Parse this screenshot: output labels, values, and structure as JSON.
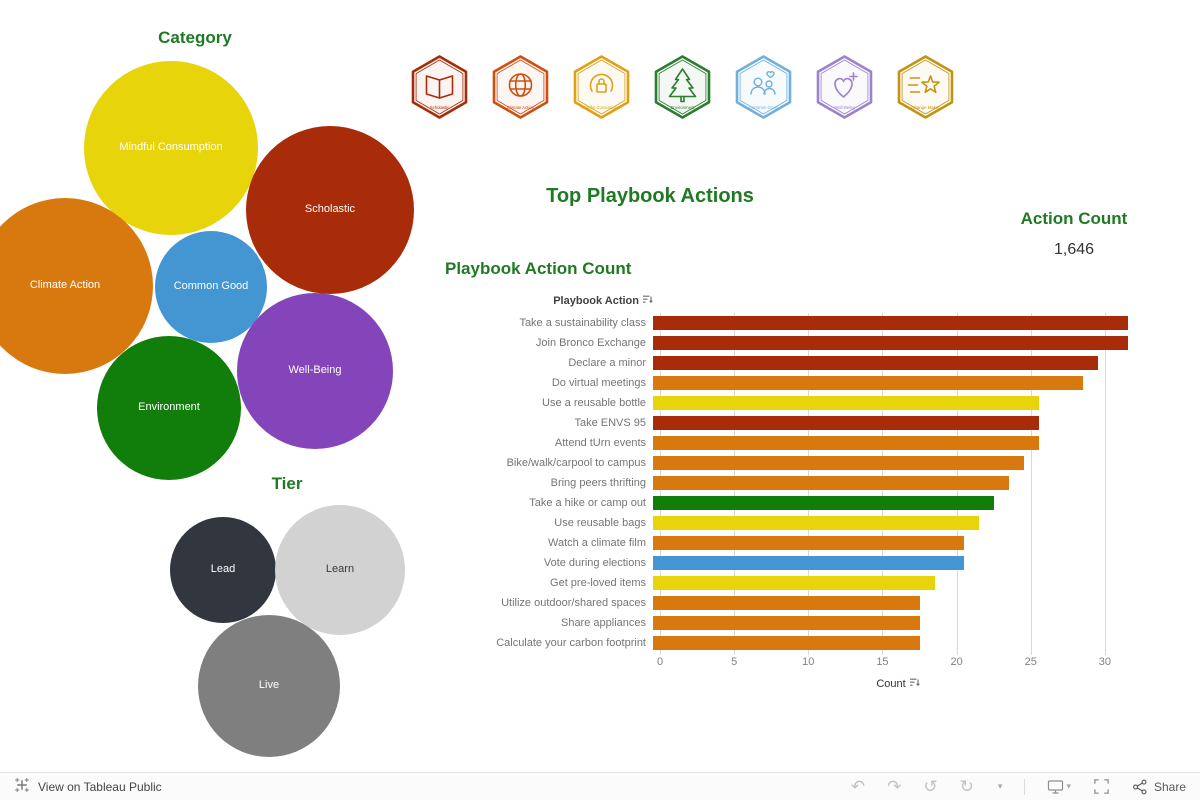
{
  "accent": {
    "heading_green": "#1f7a23"
  },
  "main": {
    "title": "Top Playbook Actions",
    "action_count_label": "Action Count",
    "action_count_value": "1,646",
    "chart_title": "Playbook Action Count",
    "column_header": "Playbook Action",
    "xaxis_label": "Count"
  },
  "chart_data": [
    {
      "type": "bubble",
      "title": "Category",
      "items": [
        {
          "label": "Mindful Consumption",
          "color": "#e8d40b",
          "text_color": "#ffffff"
        },
        {
          "label": "Scholastic",
          "color": "#a82c09",
          "text_color": "#ffffff"
        },
        {
          "label": "Climate Action",
          "color": "#d8790f",
          "text_color": "#ffffff"
        },
        {
          "label": "Common Good",
          "color": "#4496d3",
          "text_color": "#ffffff"
        },
        {
          "label": "Well-Being",
          "color": "#8445ba",
          "text_color": "#ffffff"
        },
        {
          "label": "Environment",
          "color": "#117d0a",
          "text_color": "#ffffff"
        }
      ]
    },
    {
      "type": "bubble",
      "title": "Tier",
      "items": [
        {
          "label": "Lead",
          "color": "#32363f",
          "text_color": "#ffffff"
        },
        {
          "label": "Learn",
          "color": "#d2d2d2",
          "text_color": "#3a3a3a"
        },
        {
          "label": "Live",
          "color": "#7f7f7f",
          "text_color": "#ffffff"
        }
      ]
    },
    {
      "type": "bar",
      "orientation": "horizontal",
      "title": "Playbook Action Count",
      "xlabel": "Count",
      "ylabel": "Playbook Action",
      "xlim": [
        0,
        32
      ],
      "xticks": [
        0,
        5,
        10,
        15,
        20,
        25,
        30
      ],
      "grid": true,
      "legend": false,
      "categories": [
        "Take a sustainability class",
        "Join Bronco Exchange",
        "Declare a minor",
        "Do virtual meetings",
        "Use a reusable bottle",
        "Take ENVS 95",
        "Attend tUrn events",
        "Bike/walk/carpool to campus",
        "Bring peers thrifting",
        "Take a hike or camp out",
        "Use reusable bags",
        "Watch a climate film",
        "Vote during elections",
        "Get pre-loved items",
        "Utilize outdoor/shared spaces",
        "Share appliances",
        "Calculate your carbon footprint"
      ],
      "values": [
        32,
        32,
        30,
        29,
        26,
        26,
        26,
        25,
        24,
        23,
        22,
        21,
        21,
        19,
        18,
        18,
        18
      ],
      "colors": [
        "#a82c09",
        "#a82c09",
        "#a82c09",
        "#d8790f",
        "#e8d40b",
        "#a82c09",
        "#d8790f",
        "#d8790f",
        "#d8790f",
        "#117d0a",
        "#e8d40b",
        "#d8790f",
        "#4496d3",
        "#e8d40b",
        "#d8790f",
        "#d8790f",
        "#d8790f"
      ]
    }
  ],
  "badges": [
    {
      "name": "Scholastic",
      "color": "#a82c09",
      "icon": "book-icon"
    },
    {
      "name": "Climate Action",
      "color": "#cf4e10",
      "icon": "globe-icon"
    },
    {
      "name": "Mindful Consumption",
      "color": "#dfa114",
      "icon": "recycle-lock-icon"
    },
    {
      "name": "Environment",
      "color": "#2c7d2f",
      "icon": "tree-icon"
    },
    {
      "name": "Common Good",
      "color": "#71b0dd",
      "icon": "people-heart-icon"
    },
    {
      "name": "Well-Being",
      "color": "#9b82cc",
      "icon": "heart-plus-icon"
    },
    {
      "name": "Change Maker",
      "color": "#c39414",
      "icon": "shooting-star-icon"
    }
  ],
  "footer": {
    "view_text": "View on Tableau Public",
    "share_label": "Share",
    "glyphs": {
      "undo": "↶",
      "redo": "↷",
      "replay": "↺",
      "refresh": "↻",
      "caret": "▾"
    }
  }
}
